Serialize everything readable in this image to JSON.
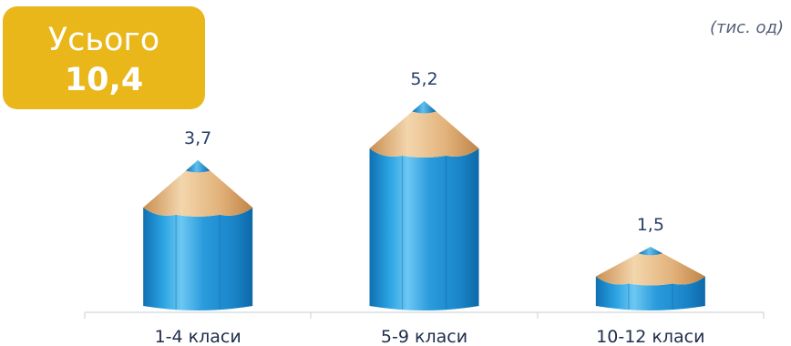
{
  "total": {
    "label": "Усього",
    "value": "10,4"
  },
  "unit": "(тис. од)",
  "chart_data": {
    "type": "bar",
    "title": "",
    "xlabel": "",
    "ylabel": "",
    "categories": [
      "1-4 класи",
      "5-9 класи",
      "10-12 класи"
    ],
    "values": [
      3.7,
      5.2,
      1.5
    ],
    "value_labels": [
      "3,7",
      "5,2",
      "1,5"
    ],
    "ylim": [
      0,
      5.5
    ],
    "grid": false,
    "colors": {
      "body": "#1e95d6",
      "wood": "#e8c08c",
      "tip": "#1e95d6"
    }
  }
}
